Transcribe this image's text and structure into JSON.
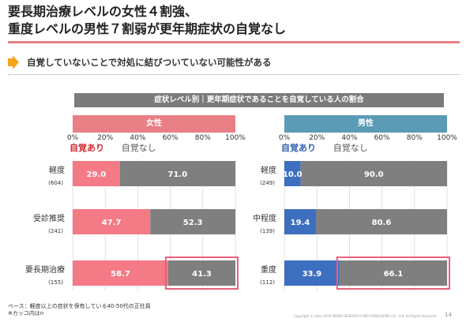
{
  "title": {
    "line1": "要長期治療レベルの女性４割強、",
    "line2": "重度レベルの男性７割弱が更年期症状の自覚なし"
  },
  "subtitle": "自覚していないことで対処に結びついていない可能性がある",
  "banner": "症状レベル別｜更年期症状であることを自覚している人の割合",
  "footnote": {
    "line1": "ベース：軽度以上の症状を保有している40-50代の正社員",
    "line2": "※カッコ内はn"
  },
  "copyright": "Copyright © amie 2016 MIKIIKI RESEARCH AND CONSULTING CO., Ltd. All Rights Reserved",
  "page_number": "14",
  "colors": {
    "accent_line": "#e57f85",
    "arrow": "#f5a51c",
    "female_aware": "#f47a86",
    "male_aware": "#3d6fc0",
    "unaware": "#7f7f7f",
    "highlight": "#e8607a",
    "female_header": "#e87f85",
    "male_header": "#5b9bb5",
    "female_label": "#d0262f",
    "male_label": "#2e5fad"
  },
  "chart_data": [
    {
      "type": "bar",
      "orientation": "horizontal",
      "stacked": true,
      "panel_title": "女性",
      "xlim": [
        0,
        100
      ],
      "x_ticks": [
        "0%",
        "20%",
        "40%",
        "60%",
        "80%",
        "100%"
      ],
      "categories": [
        "軽度",
        "受診推奨",
        "要長期治療"
      ],
      "n_labels": [
        "(604)",
        "(241)",
        "(155)"
      ],
      "series": [
        {
          "name": "自覚あり",
          "values": [
            29.0,
            47.7,
            58.7
          ]
        },
        {
          "name": "自覚なし",
          "values": [
            71.0,
            52.3,
            41.3
          ]
        }
      ],
      "value_labels": [
        [
          "29.0",
          "47.7",
          "58.7"
        ],
        [
          "71.0",
          "52.3",
          "41.3"
        ]
      ],
      "highlight": {
        "series": 1,
        "category": 2
      },
      "grid": true
    },
    {
      "type": "bar",
      "orientation": "horizontal",
      "stacked": true,
      "panel_title": "男性",
      "xlim": [
        0,
        100
      ],
      "x_ticks": [
        "0%",
        "20%",
        "40%",
        "60%",
        "80%",
        "100%"
      ],
      "categories": [
        "軽度",
        "中程度",
        "重度"
      ],
      "n_labels": [
        "(249)",
        "(139)",
        "(112)"
      ],
      "series": [
        {
          "name": "自覚あり",
          "values": [
            10.0,
            19.4,
            33.9
          ]
        },
        {
          "name": "自覚なし",
          "values": [
            90.0,
            80.6,
            66.1
          ]
        }
      ],
      "value_labels": [
        [
          "10.0",
          "19.4",
          "33.9"
        ],
        [
          "90.0",
          "80.6",
          "66.1"
        ]
      ],
      "highlight": {
        "series": 1,
        "category": 2
      },
      "grid": true
    }
  ]
}
